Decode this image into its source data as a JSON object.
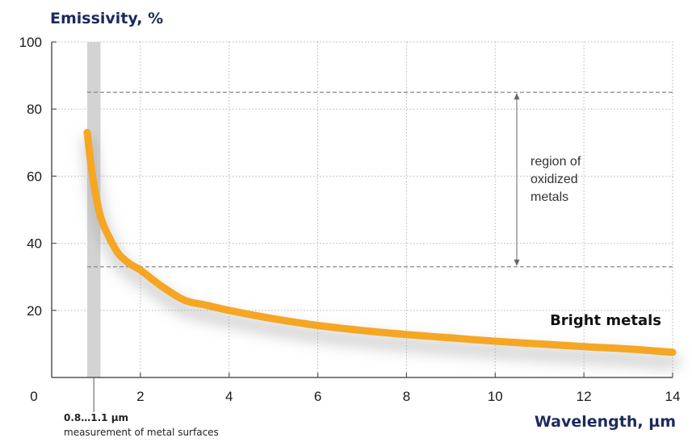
{
  "chart_data": {
    "type": "line",
    "ylabel": "Emissivity, %",
    "xlabel": "Wavelength, µm",
    "xlim": [
      0,
      14
    ],
    "ylim": [
      0,
      100
    ],
    "x_ticks": [
      0,
      2,
      4,
      6,
      8,
      10,
      12,
      14
    ],
    "y_ticks": [
      20,
      40,
      60,
      80,
      100
    ],
    "grid": true,
    "series": [
      {
        "name": "Bright metals",
        "color": "#f5a623",
        "x": [
          0.8,
          0.9,
          1.0,
          1.1,
          1.25,
          1.5,
          1.75,
          2,
          2.5,
          3,
          3.5,
          4,
          5,
          6,
          7,
          8,
          9,
          10,
          11,
          12,
          13,
          14
        ],
        "y": [
          73,
          62,
          54,
          48,
          43,
          37,
          34,
          32,
          27,
          23,
          21.5,
          20,
          17.5,
          15.5,
          14,
          12.8,
          11.8,
          10.8,
          10,
          9.2,
          8.5,
          7.5
        ]
      }
    ],
    "bands": [
      {
        "x_range": [
          0.8,
          1.1
        ],
        "label": "0.8…1.1 µm",
        "sublabel": "measurement of metal surfaces",
        "color": "#d3d3d3"
      }
    ],
    "region": {
      "y_range": [
        33,
        85
      ],
      "label_lines": [
        "region of",
        "oxidized",
        "metals"
      ]
    }
  }
}
